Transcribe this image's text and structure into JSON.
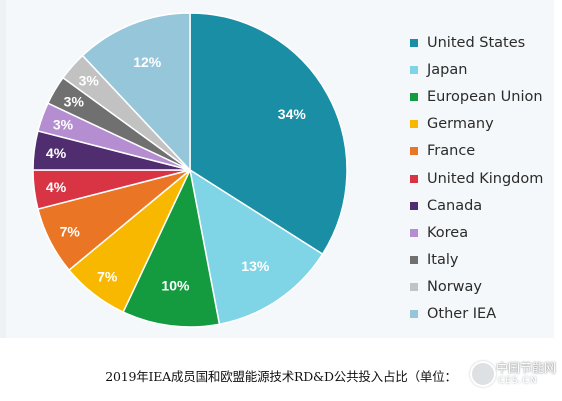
{
  "chart_data": {
    "type": "pie",
    "title": "",
    "slices": [
      {
        "name": "United States",
        "value": 34,
        "label": "34%",
        "color": "#1a8ea4"
      },
      {
        "name": "Japan",
        "value": 13,
        "label": "13%",
        "color": "#7fd4e6"
      },
      {
        "name": "European Union",
        "value": 10,
        "label": "10%",
        "color": "#149b3f"
      },
      {
        "name": "Germany",
        "value": 7,
        "label": "7%",
        "color": "#f9b800"
      },
      {
        "name": "France",
        "value": 7,
        "label": "7%",
        "color": "#ea7524"
      },
      {
        "name": "United Kingdom",
        "value": 4,
        "label": "4%",
        "color": "#d93444"
      },
      {
        "name": "Canada",
        "value": 4,
        "label": "4%",
        "color": "#4f2d6f"
      },
      {
        "name": "Korea",
        "value": 3,
        "label": "3%",
        "color": "#b58ed1"
      },
      {
        "name": "Italy",
        "value": 3,
        "label": "3%",
        "color": "#707070"
      },
      {
        "name": "Norway",
        "value": 3,
        "label": "3%",
        "color": "#c2c2c2"
      },
      {
        "name": "Other IEA",
        "value": 12,
        "label": "12%",
        "color": "#96c6da"
      }
    ],
    "legend_position": "right"
  },
  "caption": "2019年IEA成员国和欧盟能源技术RD&D公共投入占比（单位：",
  "watermark": {
    "name": "中国节能网",
    "url": "CES.CN"
  }
}
